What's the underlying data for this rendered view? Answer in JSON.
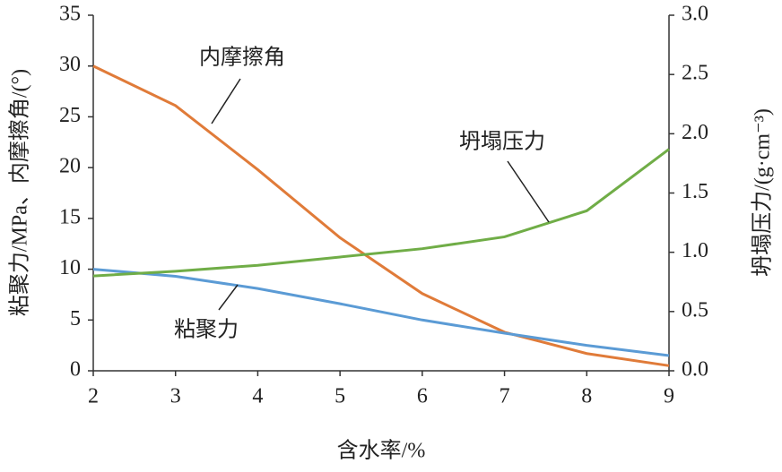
{
  "chart_data": {
    "type": "line",
    "x": [
      2,
      3,
      4,
      5,
      6,
      7,
      8,
      9
    ],
    "xlim": [
      2,
      9
    ],
    "xticks": [
      2,
      3,
      4,
      5,
      6,
      7,
      8,
      9
    ],
    "ylim": [
      0,
      35
    ],
    "yticks": [
      0,
      5,
      10,
      15,
      20,
      25,
      30,
      35
    ],
    "y2lim": [
      0,
      3
    ],
    "y2ticks": [
      {
        "value": 0,
        "label": "0.0"
      },
      0.5,
      {
        "value": 1,
        "label": "1.0"
      },
      1.5,
      {
        "value": 2,
        "label": "2.0"
      },
      2.5,
      {
        "value": 3,
        "label": "3.0"
      }
    ],
    "xlabel": "含水率/%",
    "ylabel": "粘聚力/MPa、内摩擦角/(°)",
    "y2label": "坍塌压力/(g·cm⁻³)",
    "series": [
      {
        "name": "内摩擦角",
        "color": "#e07b39",
        "values": [
          30,
          26.1,
          19.8,
          13.1,
          7.6,
          3.8,
          1.7,
          0.5
        ]
      },
      {
        "name": "粘聚力",
        "color": "#5b9bd5",
        "values": [
          10,
          9.3,
          8.1,
          6.6,
          5.0,
          3.7,
          2.5,
          1.5
        ]
      },
      {
        "name": "坍塌压力",
        "color": "#70ad47",
        "axis": "y2",
        "values": [
          0.8,
          0.84,
          0.89,
          0.96,
          1.03,
          1.13,
          1.35,
          1.87
        ]
      }
    ]
  }
}
